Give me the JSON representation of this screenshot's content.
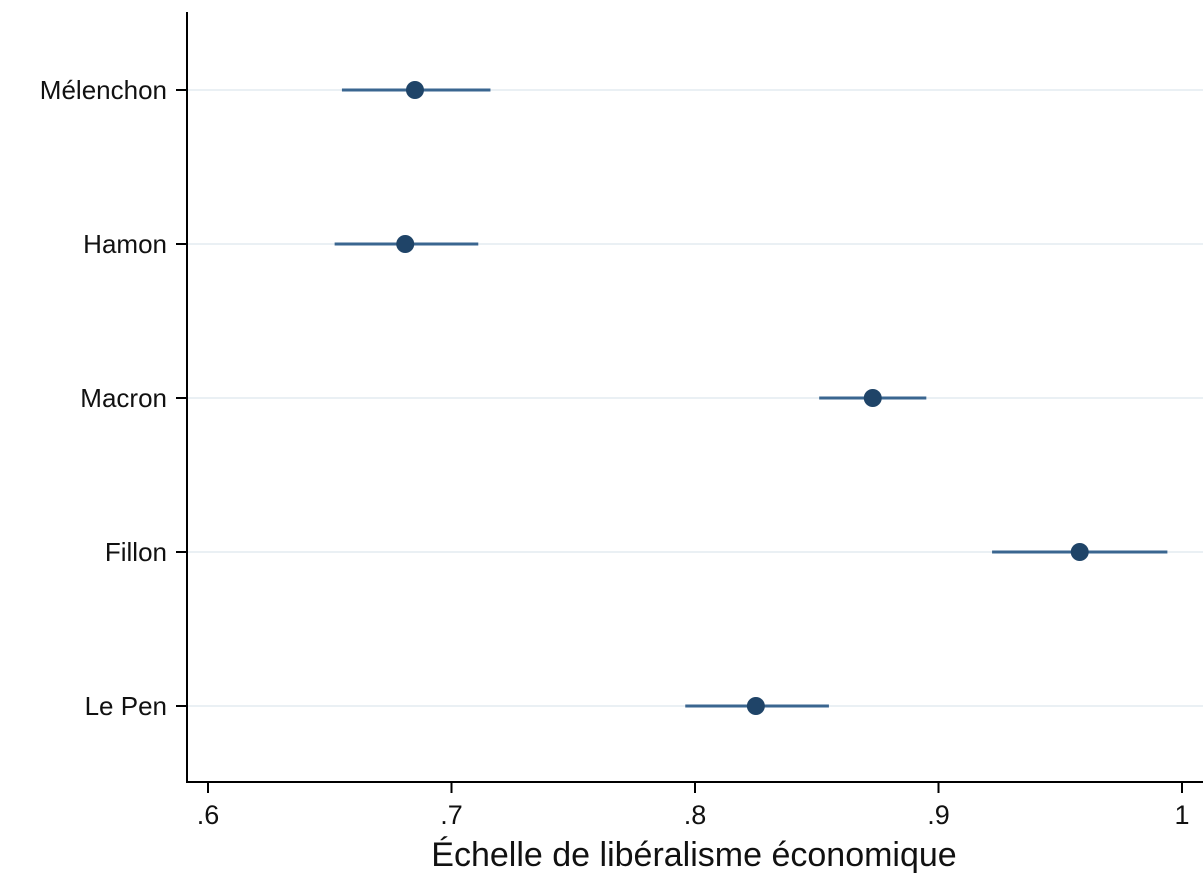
{
  "chart_data": {
    "type": "scatter",
    "subtype": "horizontal dot plot with confidence intervals",
    "categories": [
      "Mélenchon",
      "Hamon",
      "Macron",
      "Fillon",
      "Le Pen"
    ],
    "series": [
      {
        "values": [
          0.685,
          0.681,
          0.873,
          0.958,
          0.825
        ],
        "ci_low": [
          0.655,
          0.652,
          0.851,
          0.922,
          0.796
        ],
        "ci_high": [
          0.716,
          0.711,
          0.895,
          0.994,
          0.855
        ]
      }
    ],
    "xlabel": "Échelle de libéralisme économique",
    "ylabel": "",
    "xlim": [
      0.593,
      1.004
    ],
    "xticks": [
      0.6,
      0.7,
      0.8,
      0.9,
      1.0
    ],
    "xtick_labels": [
      ".6",
      ".7",
      ".8",
      ".9",
      "1"
    ],
    "grid": true,
    "colors": {
      "marker": "#1f4468",
      "ci": "#3a6690",
      "grid": "#eaf0f4",
      "axis": "#000000"
    }
  }
}
